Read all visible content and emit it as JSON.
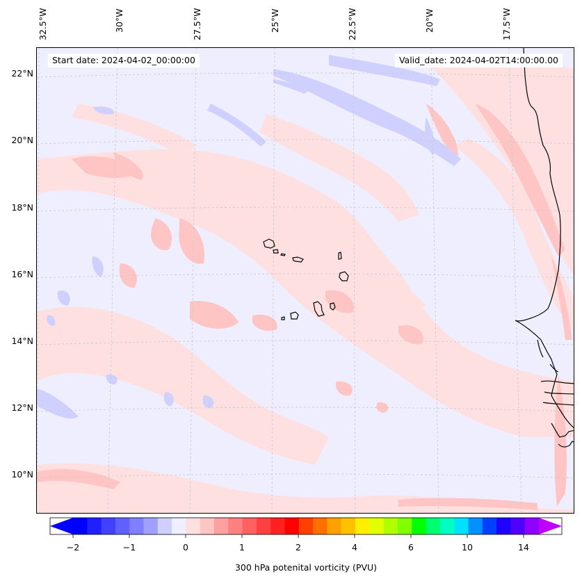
{
  "map": {
    "longitude_labels": [
      "32.5°W",
      "30°W",
      "27.5°W",
      "25°W",
      "22.5°W",
      "20°W",
      "17.5°W"
    ],
    "latitude_labels": [
      "22°N",
      "20°N",
      "18°N",
      "16°N",
      "14°N",
      "12°N",
      "10°N"
    ],
    "start_date": "Start date: 2024-04-02_00:00:00",
    "valid_date": "Valid_date: 2024-04-02T14:00:00.00",
    "field": "300 hPa potential vorticity",
    "region": "Cabo Verde / West African coast",
    "colors": {
      "background": "#eeeeff",
      "light_pink": "#ffe0e0",
      "pink": "#ffc4c4",
      "light_blue": "#d0d0ff",
      "coastline": "#000000",
      "gridline": "#c8c8c8"
    }
  },
  "colorbar": {
    "label": "300 hPa potenital vorticity (PVU)",
    "tick_labels": [
      "−2",
      "−1",
      "0",
      "1",
      "2",
      "4",
      "6",
      "10",
      "14"
    ],
    "colors": [
      "#0000ff",
      "#2020ff",
      "#4040ff",
      "#6060ff",
      "#8080ff",
      "#a0a0ff",
      "#d0d0ff",
      "#eeeeff",
      "#ffe0e0",
      "#ffc4c4",
      "#ffa0a0",
      "#ff8080",
      "#ff6060",
      "#ff4040",
      "#ff2020",
      "#ff0000",
      "#ff4000",
      "#ff7000",
      "#ffa000",
      "#ffc000",
      "#ffee00",
      "#e0ff00",
      "#b0ff00",
      "#80ff00",
      "#00ff00",
      "#00ff70",
      "#00ffc0",
      "#00e0ff",
      "#0090ff",
      "#0040ff",
      "#2000ff",
      "#5000ff",
      "#9000ff"
    ],
    "extend_colors": {
      "low": "#0000ff",
      "high": "#c000ff"
    }
  }
}
